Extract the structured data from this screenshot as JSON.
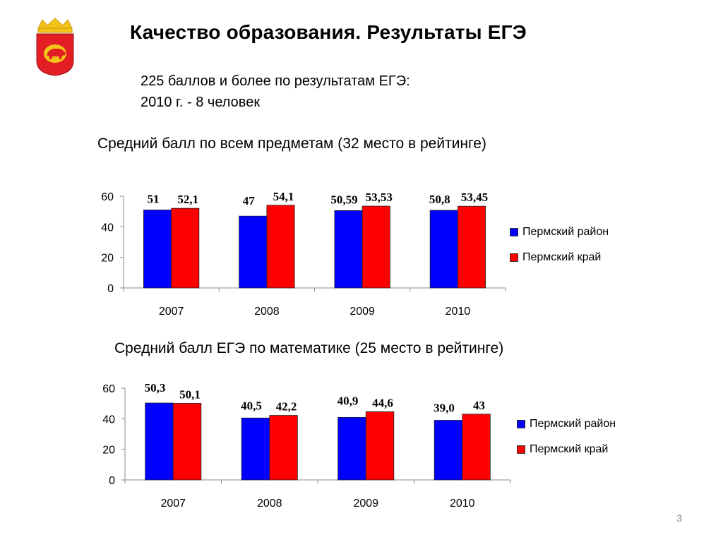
{
  "slide": {
    "title": "Качество образования.  Результаты ЕГЭ",
    "subtitle_line1": "225 баллов и более по результатам ЕГЭ:",
    "subtitle_line2": "2010 г. - 8 человек",
    "page_number": "3",
    "emblem_icon": "coat-of-arms-icon",
    "colors": {
      "district": "#0000FF",
      "region": "#FF0000",
      "emblem": "#E31E24",
      "crown": "#F2C318"
    }
  },
  "chart_data": [
    {
      "type": "bar",
      "title": "Средний балл по всем предметам (32 место в рейтинге)",
      "categories": [
        "2007",
        "2008",
        "2009",
        "2010"
      ],
      "series": [
        {
          "name": "Пермский район",
          "values": [
            51,
            47,
            50.59,
            50.8
          ],
          "labels": [
            "51",
            "47",
            "50,59",
            "50,8"
          ],
          "color": "#0000FF"
        },
        {
          "name": "Пермский край",
          "values": [
            52.1,
            54.1,
            53.53,
            53.45
          ],
          "labels": [
            "52,1",
            "54,1",
            "53,53",
            "53,45"
          ],
          "color": "#FF0000"
        }
      ],
      "ylim": [
        0,
        60
      ],
      "yticks": [
        "0",
        "20",
        "40",
        "60"
      ],
      "grid": false,
      "legend": "right"
    },
    {
      "type": "bar",
      "title": "Средний балл ЕГЭ по математике (25 место в рейтинге)",
      "categories": [
        "2007",
        "2008",
        "2009",
        "2010"
      ],
      "series": [
        {
          "name": "Пермский район",
          "values": [
            50.3,
            40.5,
            40.9,
            39.0
          ],
          "labels": [
            "50,3",
            "40,5",
            "40,9",
            "39,0"
          ],
          "color": "#0000FF"
        },
        {
          "name": "Пермский край",
          "values": [
            50.1,
            42.2,
            44.6,
            43
          ],
          "labels": [
            "50,1",
            "42,2",
            "44,6",
            "43"
          ],
          "color": "#FF0000"
        }
      ],
      "ylim": [
        0,
        60
      ],
      "yticks": [
        "0",
        "20",
        "40",
        "60"
      ],
      "grid": false,
      "legend": "right"
    }
  ]
}
